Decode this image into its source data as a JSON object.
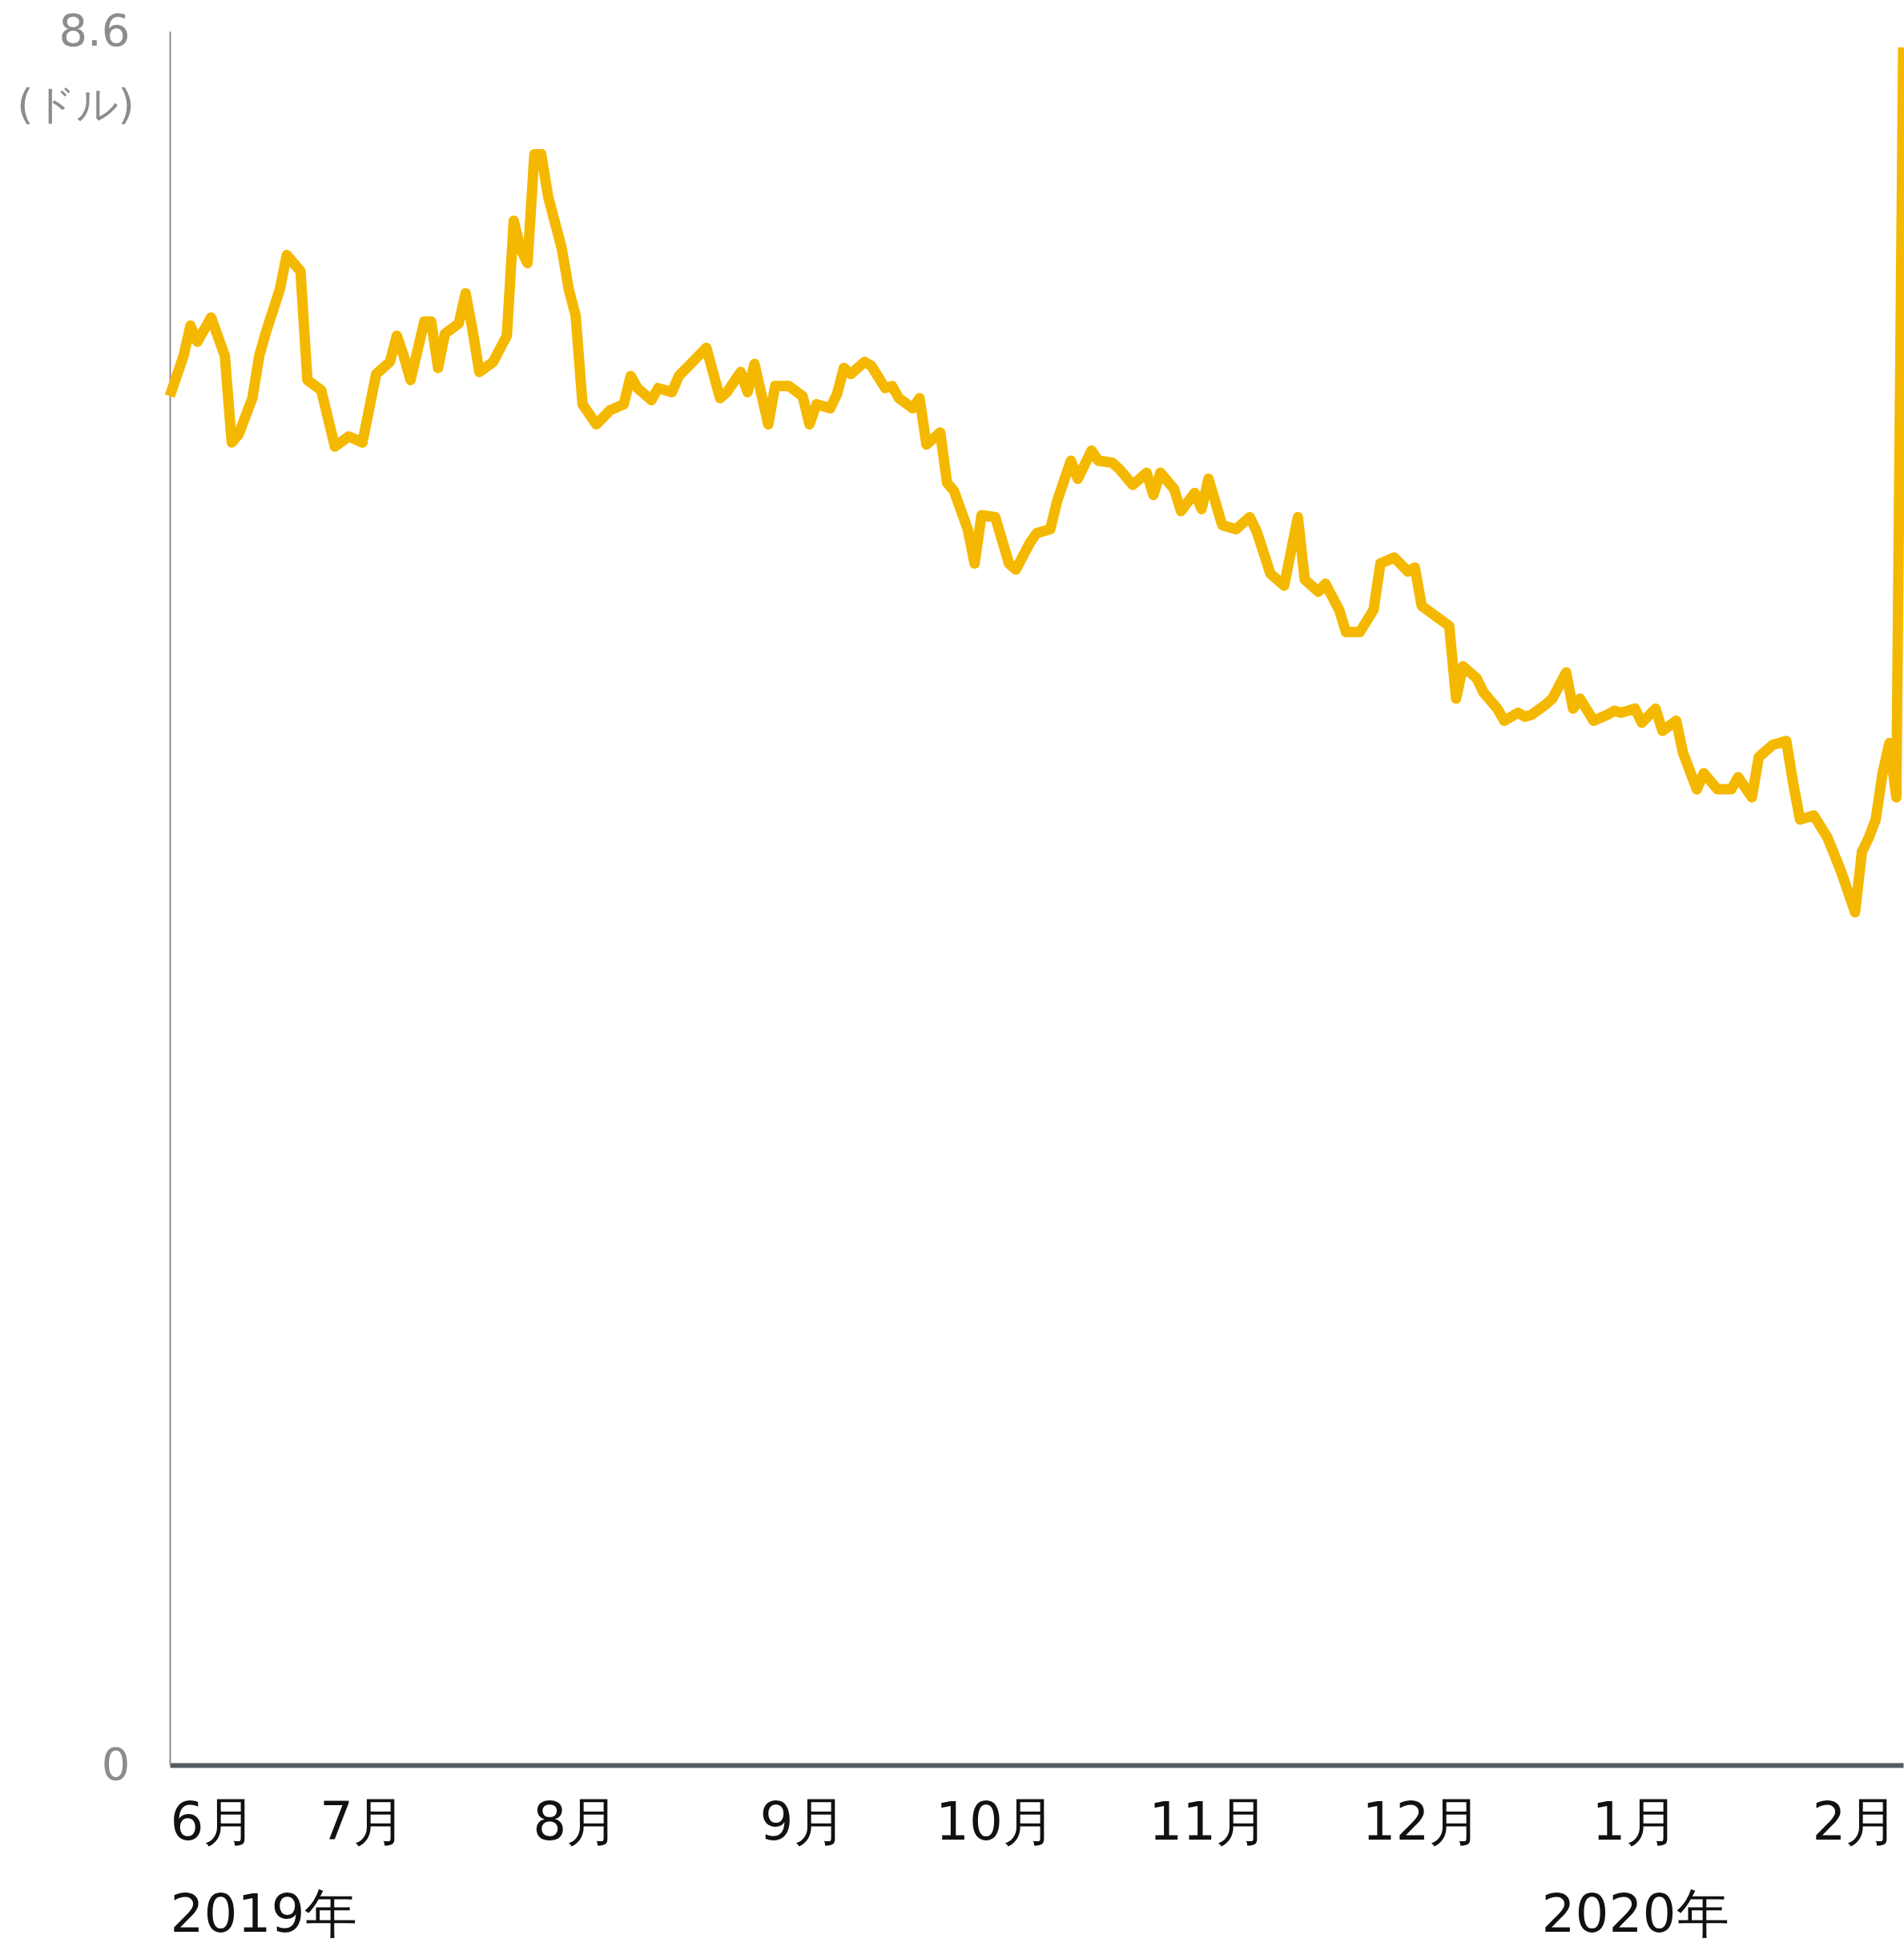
{
  "chart_data": {
    "type": "line",
    "ylabel": "(ドル)",
    "xlim": [
      "2019-06-03",
      "2020-02-10"
    ],
    "xticks": [
      {
        "value": "2019-06-03",
        "label": "6月\n2019年"
      },
      {
        "value": "2019-07-01",
        "label": "7月"
      },
      {
        "value": "2019-08-01",
        "label": "8月"
      },
      {
        "value": "2019-09-03",
        "label": "9月"
      },
      {
        "value": "2019-10-01",
        "label": "10月"
      },
      {
        "value": "2019-11-01",
        "label": "11月"
      },
      {
        "value": "2019-12-02",
        "label": "12月"
      },
      {
        "value": "2020-01-02",
        "label": "1月\n2020年"
      },
      {
        "value": "2020-02-03",
        "label": "2月"
      }
    ],
    "ylim": [
      0,
      8.6
    ],
    "yticks": [
      0,
      8.6
    ],
    "grid": false,
    "line_style": "solid",
    "x": [
      "2019-06-03",
      "2019-06-05",
      "2019-06-06",
      "2019-06-07",
      "2019-06-09",
      "2019-06-11",
      "2019-06-12",
      "2019-06-13",
      "2019-06-15",
      "2019-06-16",
      "2019-06-17",
      "2019-06-19",
      "2019-06-20",
      "2019-06-22",
      "2019-06-23",
      "2019-06-25",
      "2019-06-27",
      "2019-06-29",
      "2019-07-01",
      "2019-07-03",
      "2019-07-05",
      "2019-07-06",
      "2019-07-07",
      "2019-07-08",
      "2019-07-10",
      "2019-07-11",
      "2019-07-12",
      "2019-07-13",
      "2019-07-15",
      "2019-07-16",
      "2019-07-17",
      "2019-07-18",
      "2019-07-20",
      "2019-07-22",
      "2019-07-23",
      "2019-07-24",
      "2019-07-25",
      "2019-07-26",
      "2019-07-27",
      "2019-07-28",
      "2019-07-30",
      "2019-07-31",
      "2019-08-01",
      "2019-08-02",
      "2019-08-04",
      "2019-08-06",
      "2019-08-08",
      "2019-08-09",
      "2019-08-10",
      "2019-08-12",
      "2019-08-13",
      "2019-08-15",
      "2019-08-16",
      "2019-08-18",
      "2019-08-20",
      "2019-08-22",
      "2019-08-23",
      "2019-08-25",
      "2019-08-26",
      "2019-08-27",
      "2019-08-29",
      "2019-08-30",
      "2019-09-01",
      "2019-09-03",
      "2019-09-04",
      "2019-09-05",
      "2019-09-07",
      "2019-09-08",
      "2019-09-09",
      "2019-09-10",
      "2019-09-12",
      "2019-09-13",
      "2019-09-15",
      "2019-09-16",
      "2019-09-17",
      "2019-09-19",
      "2019-09-20",
      "2019-09-21",
      "2019-09-23",
      "2019-09-24",
      "2019-09-25",
      "2019-09-27",
      "2019-09-28",
      "2019-09-29",
      "2019-10-01",
      "2019-10-03",
      "2019-10-04",
      "2019-10-06",
      "2019-10-07",
      "2019-10-09",
      "2019-10-10",
      "2019-10-12",
      "2019-10-13",
      "2019-10-15",
      "2019-10-16",
      "2019-10-18",
      "2019-10-19",
      "2019-10-21",
      "2019-10-23",
      "2019-10-24",
      "2019-10-25",
      "2019-10-27",
      "2019-10-28",
      "2019-10-30",
      "2019-10-31",
      "2019-11-01",
      "2019-11-03",
      "2019-11-05",
      "2019-11-07",
      "2019-11-08",
      "2019-11-10",
      "2019-11-12",
      "2019-11-14",
      "2019-11-15",
      "2019-11-17",
      "2019-11-18",
      "2019-11-20",
      "2019-11-21",
      "2019-11-23",
      "2019-11-25",
      "2019-11-26",
      "2019-11-28",
      "2019-11-30",
      "2019-12-01",
      "2019-12-02",
      "2019-12-04",
      "2019-12-06",
      "2019-12-07",
      "2019-12-08",
      "2019-12-10",
      "2019-12-11",
      "2019-12-13",
      "2019-12-14",
      "2019-12-16",
      "2019-12-17",
      "2019-12-18",
      "2019-12-20",
      "2019-12-21",
      "2019-12-23",
      "2019-12-24",
      "2019-12-25",
      "2019-12-27",
      "2019-12-29",
      "2019-12-30",
      "2019-12-31",
      "2020-01-02",
      "2020-01-03",
      "2020-01-05",
      "2020-01-06",
      "2020-01-08",
      "2020-01-09",
      "2020-01-11",
      "2020-01-12",
      "2020-01-14",
      "2020-01-16",
      "2020-01-17",
      "2020-01-19",
      "2020-01-20",
      "2020-01-22",
      "2020-01-24",
      "2020-01-25",
      "2020-01-26",
      "2020-01-28",
      "2020-01-30",
      "2020-02-01",
      "2020-02-03",
      "2020-02-04",
      "2020-02-05",
      "2020-02-06",
      "2020-02-07",
      "2020-02-08",
      "2020-02-09",
      "2020-02-10"
    ],
    "series": [
      {
        "color": "#f5b800",
        "values": [
          6.79,
          6.99,
          7.14,
          7.06,
          7.18,
          6.99,
          6.56,
          6.6,
          6.78,
          6.99,
          7.11,
          7.32,
          7.49,
          7.41,
          6.87,
          6.82,
          6.54,
          6.59,
          6.56,
          6.9,
          6.96,
          7.09,
          6.99,
          6.87,
          7.16,
          7.16,
          6.93,
          7.1,
          7.15,
          7.3,
          7.12,
          6.91,
          6.96,
          7.09,
          7.66,
          7.52,
          7.45,
          7.99,
          7.99,
          7.78,
          7.52,
          7.32,
          7.19,
          6.75,
          6.65,
          6.72,
          6.75,
          6.89,
          6.83,
          6.77,
          6.83,
          6.81,
          6.89,
          6.96,
          7.03,
          6.78,
          6.81,
          6.91,
          6.81,
          6.95,
          6.65,
          6.84,
          6.84,
          6.79,
          6.65,
          6.75,
          6.73,
          6.8,
          6.93,
          6.9,
          6.96,
          6.94,
          6.83,
          6.84,
          6.78,
          6.73,
          6.78,
          6.55,
          6.61,
          6.36,
          6.32,
          6.13,
          5.96,
          6.2,
          6.19,
          5.96,
          5.93,
          6.06,
          6.11,
          6.13,
          6.27,
          6.47,
          6.38,
          6.52,
          6.47,
          6.46,
          6.43,
          6.35,
          6.41,
          6.3,
          6.41,
          6.33,
          6.22,
          6.31,
          6.23,
          6.38,
          6.15,
          6.13,
          6.19,
          6.12,
          5.91,
          5.85,
          6.19,
          5.88,
          5.82,
          5.86,
          5.73,
          5.62,
          5.62,
          5.73,
          5.96,
          5.99,
          5.92,
          5.94,
          5.75,
          5.7,
          5.65,
          5.29,
          5.45,
          5.39,
          5.32,
          5.24,
          5.18,
          5.22,
          5.2,
          5.21,
          5.26,
          5.29,
          5.42,
          5.24,
          5.29,
          5.18,
          5.21,
          5.23,
          5.22,
          5.24,
          5.17,
          5.24,
          5.13,
          5.18,
          5.02,
          4.84,
          4.92,
          4.84,
          4.84,
          4.9,
          4.8,
          5.0,
          5.06,
          5.08,
          4.87,
          4.69,
          4.71,
          4.6,
          4.43,
          4.23,
          4.53,
          4.6,
          4.69,
          4.92,
          5.07,
          4.8,
          8.52
        ]
      }
    ]
  }
}
